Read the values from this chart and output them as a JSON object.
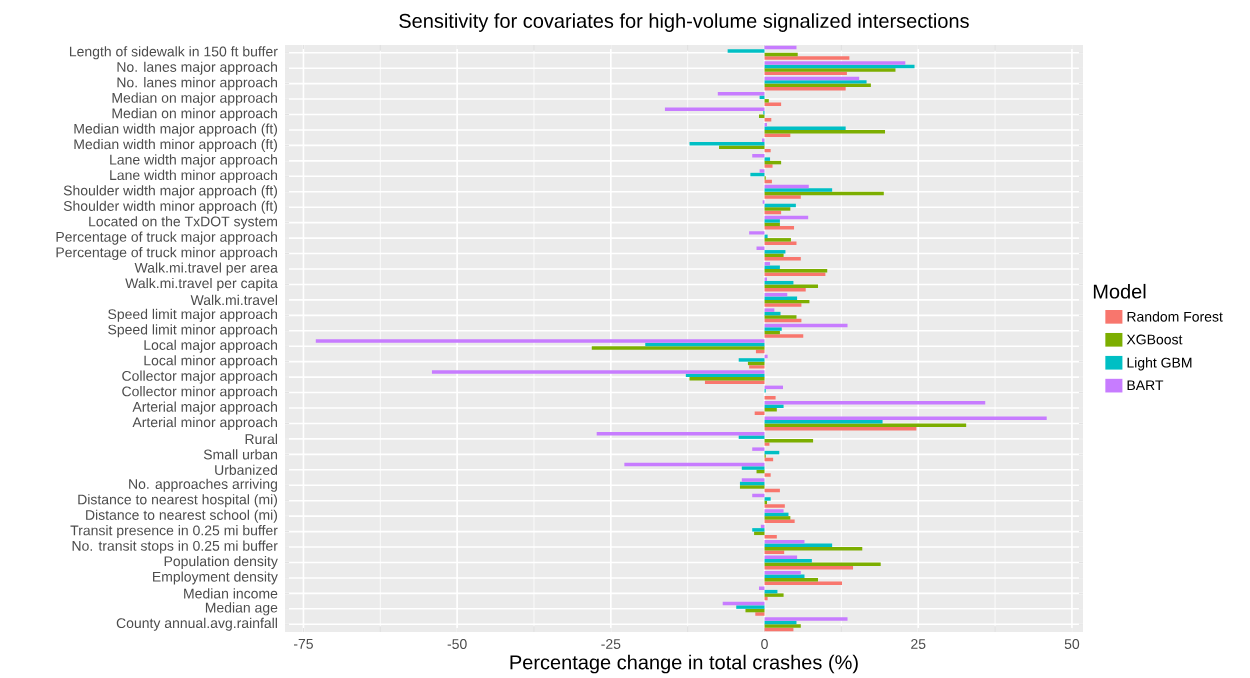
{
  "chart_data": {
    "type": "bar",
    "orientation": "horizontal",
    "title": "Sensitivity for covariates for high-volume signalized intersections",
    "xlabel": "Percentage change in total crashes (%)",
    "legend_title": "Model",
    "legend": "right",
    "grid": true,
    "categories": [
      "Length of sidewalk in 150 ft buffer",
      "No. lanes major approach",
      "No. lanes minor approach",
      "Median on major approach",
      "Median on minor approach",
      "Median width major approach (ft)",
      "Median width minor approach (ft)",
      "Lane width major approach",
      "Lane width minor approach",
      "Shoulder width major approach (ft)",
      "Shoulder width minor approach (ft)",
      "Located on the TxDOT system",
      "Percentage of truck major approach",
      "Percentage of truck minor approach",
      "Walk.mi.travel per area",
      "Walk.mi.travel per capita",
      "Walk.mi.travel",
      "Speed limit major approach",
      "Speed limit minor approach",
      "Local major approach",
      "Local minor approach",
      "Collector major approach",
      "Collector minor approach",
      "Arterial major approach",
      "Arterial minor approach",
      "Rural",
      "Small urban",
      "Urbanized",
      "No. approaches arriving",
      "Distance to nearest hospital (mi)",
      "Distance to nearest school (mi)",
      "Transit presence in 0.25 mi buffer",
      "No. transit stops in 0.25 mi buffer",
      "Population density",
      "Employment density",
      "Median income",
      "Median age",
      "County annual.avg.rainfall"
    ],
    "xlim": [
      -78,
      51.8
    ],
    "xticks": [
      -75,
      -50,
      -25,
      0,
      25,
      50
    ],
    "series": [
      {
        "name": "Random Forest",
        "color": "#f8766d",
        "values": [
          13.8,
          13.4,
          13.2,
          2.7,
          1.1,
          4.2,
          1.0,
          1.3,
          1.2,
          5.9,
          2.7,
          4.8,
          5.2,
          5.9,
          9.9,
          6.7,
          6.0,
          6.0,
          6.3,
          -1.4,
          -2.5,
          -9.7,
          1.8,
          -1.6,
          24.7,
          0.8,
          1.4,
          1.0,
          2.5,
          3.3,
          4.9,
          2.0,
          3.2,
          14.4,
          12.6,
          0.5,
          -1.5,
          4.7
        ]
      },
      {
        "name": "XGBoost",
        "color": "#7cae00",
        "values": [
          5.4,
          21.3,
          17.3,
          0.7,
          -0.9,
          19.6,
          -7.4,
          2.7,
          0.2,
          19.4,
          4.2,
          2.5,
          4.3,
          3.1,
          10.2,
          8.7,
          7.3,
          5.2,
          2.5,
          -28.1,
          -2.7,
          -12.2,
          null,
          2.0,
          32.8,
          7.9,
          0.2,
          -1.3,
          -4.0,
          0.4,
          4.2,
          -1.7,
          15.9,
          18.9,
          8.7,
          3.1,
          -3.1,
          5.9
        ]
      },
      {
        "name": "Light GBM",
        "color": "#00bfc4",
        "values": [
          -6.0,
          24.4,
          16.6,
          -0.8,
          -0.2,
          13.2,
          -12.2,
          0.9,
          -2.3,
          11.0,
          5.1,
          2.5,
          0.5,
          3.4,
          2.5,
          4.7,
          5.3,
          2.6,
          2.8,
          -19.4,
          -4.2,
          -12.8,
          0.2,
          3.1,
          19.2,
          -4.2,
          2.4,
          -3.7,
          -4.0,
          1.0,
          3.9,
          -2.0,
          11.0,
          7.7,
          6.5,
          2.1,
          -4.6,
          5.2
        ]
      },
      {
        "name": "BART",
        "color": "#c77cff",
        "values": [
          5.2,
          22.9,
          15.4,
          -7.6,
          -16.2,
          0.4,
          -0.4,
          -2.0,
          -0.8,
          7.2,
          -0.3,
          7.1,
          -2.5,
          -1.3,
          0.9,
          0.4,
          3.7,
          1.6,
          13.5,
          -73.0,
          0.5,
          -54.1,
          3.0,
          35.9,
          45.9,
          -27.3,
          -2.0,
          -22.8,
          -3.7,
          -2.0,
          3.1,
          -0.6,
          6.5,
          5.3,
          5.9,
          -0.9,
          -6.8,
          13.5
        ]
      }
    ]
  }
}
